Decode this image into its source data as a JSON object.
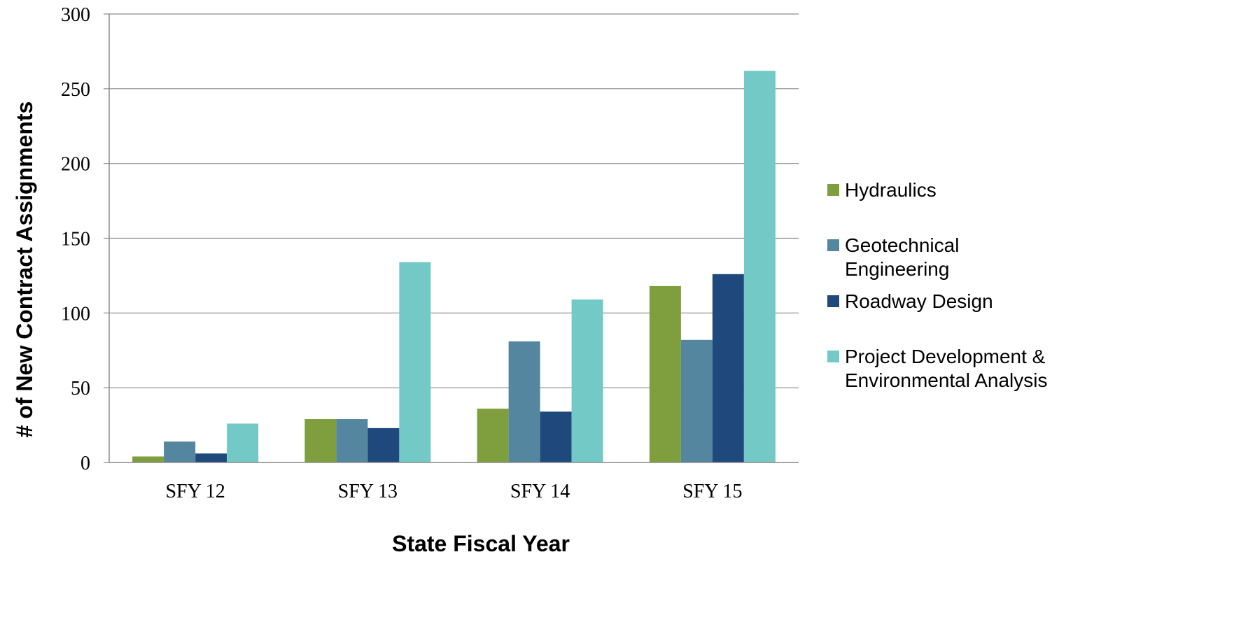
{
  "chart_data": {
    "type": "bar",
    "title": "",
    "xlabel": "State Fiscal Year",
    "ylabel": "# of New Contract Assignments",
    "categories": [
      "SFY 12",
      "SFY 13",
      "SFY 14",
      "SFY 15"
    ],
    "yticks": [
      "0",
      "50",
      "100",
      "150",
      "200",
      "250",
      "300"
    ],
    "ylim": [
      0,
      300
    ],
    "grid": true,
    "legend_position": "right",
    "series": [
      {
        "name": "Hydraulics",
        "color": "#7f9f3f",
        "values": [
          4,
          29,
          36,
          118
        ]
      },
      {
        "name": "Geotechnical Engineering",
        "label_lines": [
          "Geotechnical",
          "Engineering"
        ],
        "color": "#54879f",
        "values": [
          14,
          29,
          81,
          82
        ]
      },
      {
        "name": "Roadway Design",
        "label_lines": [
          "Roadway Design"
        ],
        "color": "#1f497d",
        "values": [
          6,
          23,
          34,
          126
        ]
      },
      {
        "name": "Project Development & Environmental Analysis",
        "label_lines": [
          "Project Development &",
          "Environmental Analysis"
        ],
        "color": "#72c9c5",
        "values": [
          26,
          134,
          109,
          262
        ]
      }
    ]
  }
}
